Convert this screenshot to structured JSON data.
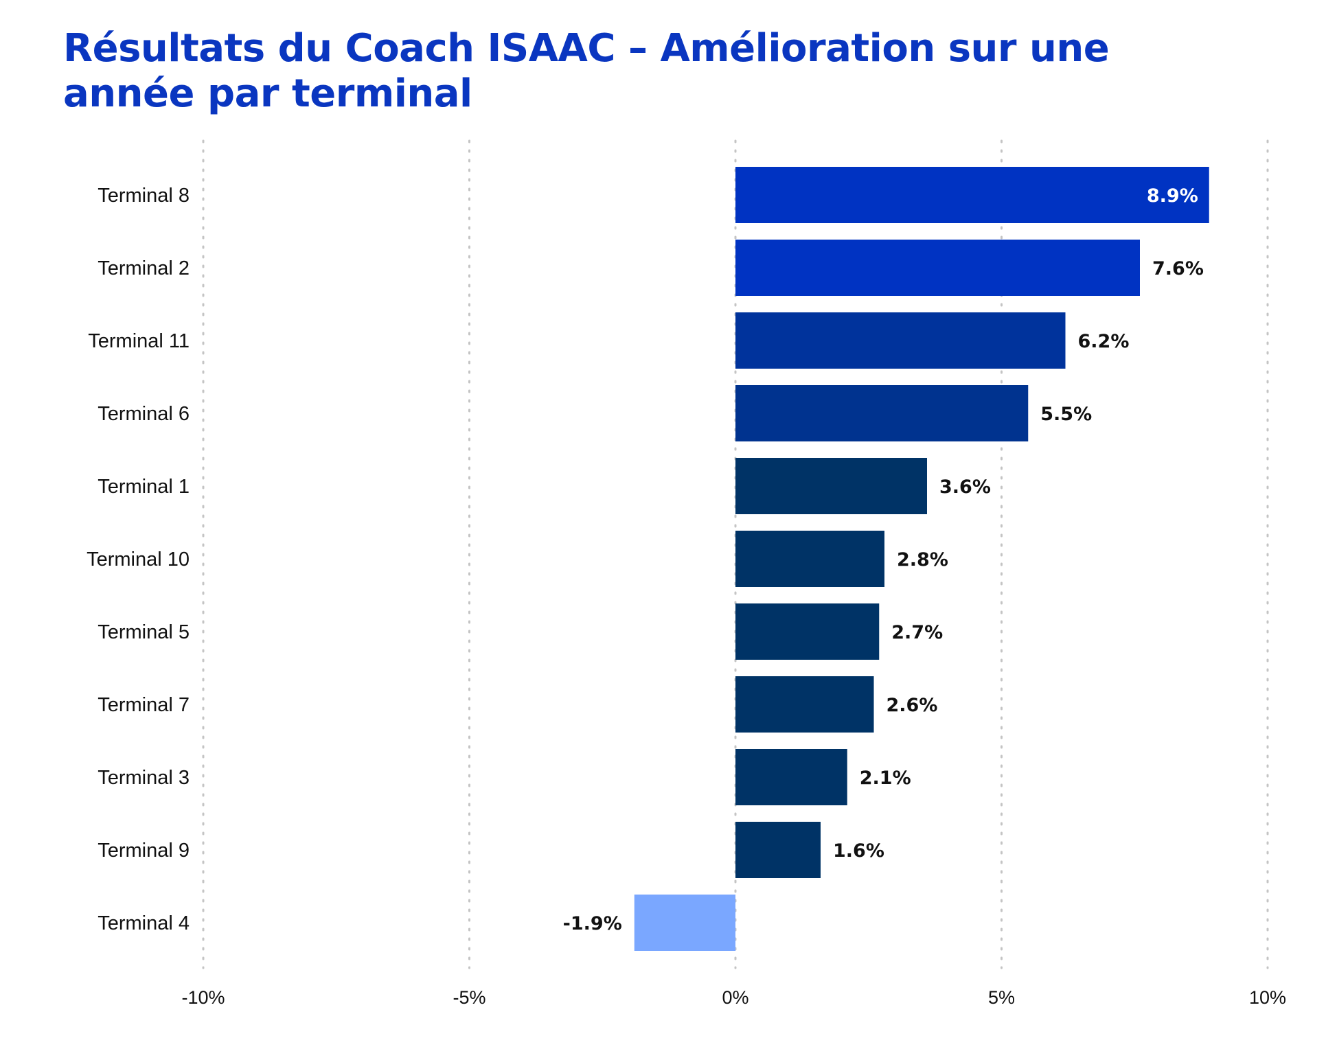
{
  "chart_data": {
    "type": "bar",
    "orientation": "horizontal",
    "title": "Résultats du Coach ISAAC – Amélioration sur une année par terminal",
    "categories": [
      "Terminal 8",
      "Terminal 2",
      "Terminal 11",
      "Terminal 6",
      "Terminal 1",
      "Terminal 10",
      "Terminal 5",
      "Terminal 7",
      "Terminal 3",
      "Terminal 9",
      "Terminal 4"
    ],
    "values": [
      8.9,
      7.6,
      6.2,
      5.5,
      3.6,
      2.8,
      2.7,
      2.6,
      2.1,
      1.6,
      -1.9
    ],
    "value_labels": [
      "8.9%",
      "7.6%",
      "6.2%",
      "5.5%",
      "3.6%",
      "2.8%",
      "2.7%",
      "2.6%",
      "2.1%",
      "1.6%",
      "-1.9%"
    ],
    "colors": [
      "#0033c2",
      "#0033c2",
      "#00339c",
      "#00338f",
      "#003366",
      "#003366",
      "#003366",
      "#003366",
      "#003366",
      "#003366",
      "#7aa7ff"
    ],
    "xlim": [
      -10,
      10
    ],
    "xticks": [
      -10,
      -5,
      0,
      5,
      10
    ],
    "xtick_labels": [
      "-10%",
      "-5%",
      "0%",
      "5%",
      "10%"
    ],
    "xlabel": "",
    "ylabel": "",
    "grid": "vertical dotted",
    "legend": "none"
  }
}
